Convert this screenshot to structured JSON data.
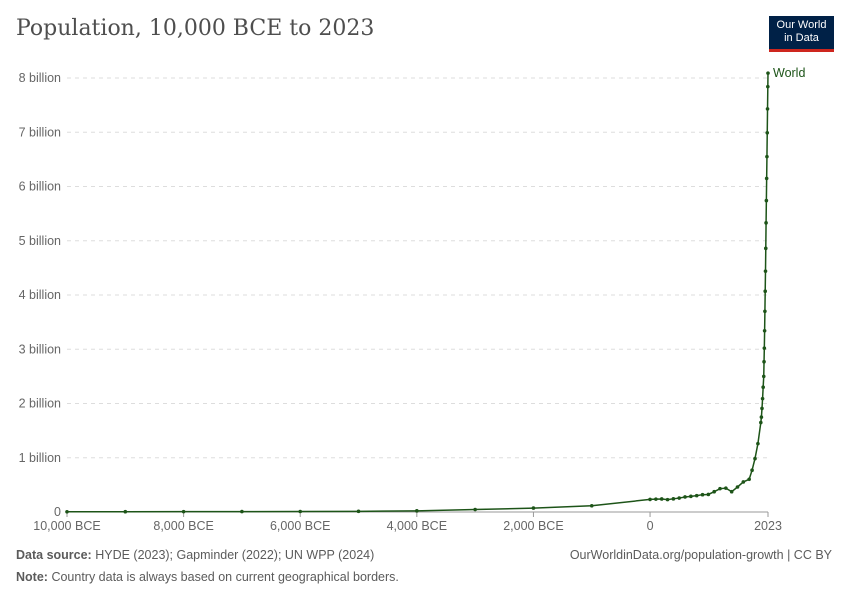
{
  "title": "Population, 10,000 BCE to 2023",
  "logo": {
    "line1": "Our World",
    "line2": "in Data"
  },
  "chart_data": {
    "type": "line",
    "title": "Population, 10,000 BCE to 2023",
    "xlim": [
      -10000,
      2023
    ],
    "ylim": [
      0,
      8000000000
    ],
    "grid": true,
    "x_ticks": [
      {
        "value": -10000,
        "label": "10,000 BCE"
      },
      {
        "value": -8000,
        "label": "8,000 BCE"
      },
      {
        "value": -6000,
        "label": "6,000 BCE"
      },
      {
        "value": -4000,
        "label": "4,000 BCE"
      },
      {
        "value": -2000,
        "label": "2,000 BCE"
      },
      {
        "value": 0,
        "label": "0"
      },
      {
        "value": 2023,
        "label": "2023"
      }
    ],
    "y_ticks": [
      {
        "value": 0,
        "label": "0"
      },
      {
        "value": 1000000000,
        "label": "1 billion"
      },
      {
        "value": 2000000000,
        "label": "2 billion"
      },
      {
        "value": 3000000000,
        "label": "3 billion"
      },
      {
        "value": 4000000000,
        "label": "4 billion"
      },
      {
        "value": 5000000000,
        "label": "5 billion"
      },
      {
        "value": 6000000000,
        "label": "6 billion"
      },
      {
        "value": 7000000000,
        "label": "7 billion"
      },
      {
        "value": 8000000000,
        "label": "8 billion"
      }
    ],
    "series": [
      {
        "name": "World",
        "color": "#1d5418",
        "x": [
          -10000,
          -9000,
          -8000,
          -7000,
          -6000,
          -5000,
          -4000,
          -3000,
          -2000,
          -1000,
          0,
          100,
          200,
          300,
          400,
          500,
          600,
          700,
          800,
          900,
          1000,
          1100,
          1200,
          1300,
          1400,
          1500,
          1600,
          1700,
          1750,
          1800,
          1850,
          1900,
          1910,
          1920,
          1930,
          1940,
          1950,
          1955,
          1960,
          1965,
          1970,
          1975,
          1980,
          1985,
          1990,
          1995,
          2000,
          2005,
          2010,
          2015,
          2020,
          2023
        ],
        "y": [
          4400000,
          5200000,
          6000000,
          7300000,
          9000000,
          11800000,
          21500000,
          45000000,
          72000000,
          115000000,
          232000000,
          237000000,
          240000000,
          228000000,
          243000000,
          257000000,
          277000000,
          289000000,
          302000000,
          319000000,
          323000000,
          374000000,
          430000000,
          440000000,
          374000000,
          461000000,
          554000000,
          603000000,
          770000000,
          985000000,
          1260000000,
          1650000000,
          1750000000,
          1910000000,
          2090000000,
          2300000000,
          2500000000,
          2770000000,
          3020000000,
          3340000000,
          3700000000,
          4070000000,
          4440000000,
          4860000000,
          5330000000,
          5740000000,
          6150000000,
          6550000000,
          6990000000,
          7430000000,
          7840000000,
          8090000000
        ]
      }
    ]
  },
  "footer": {
    "source_label": "Data source:",
    "source": "HYDE (2023); Gapminder (2022); UN WPP (2024)",
    "url": "OurWorldinData.org/population-growth | CC BY",
    "note_label": "Note:",
    "note": "Country data is always based on current geographical borders."
  }
}
